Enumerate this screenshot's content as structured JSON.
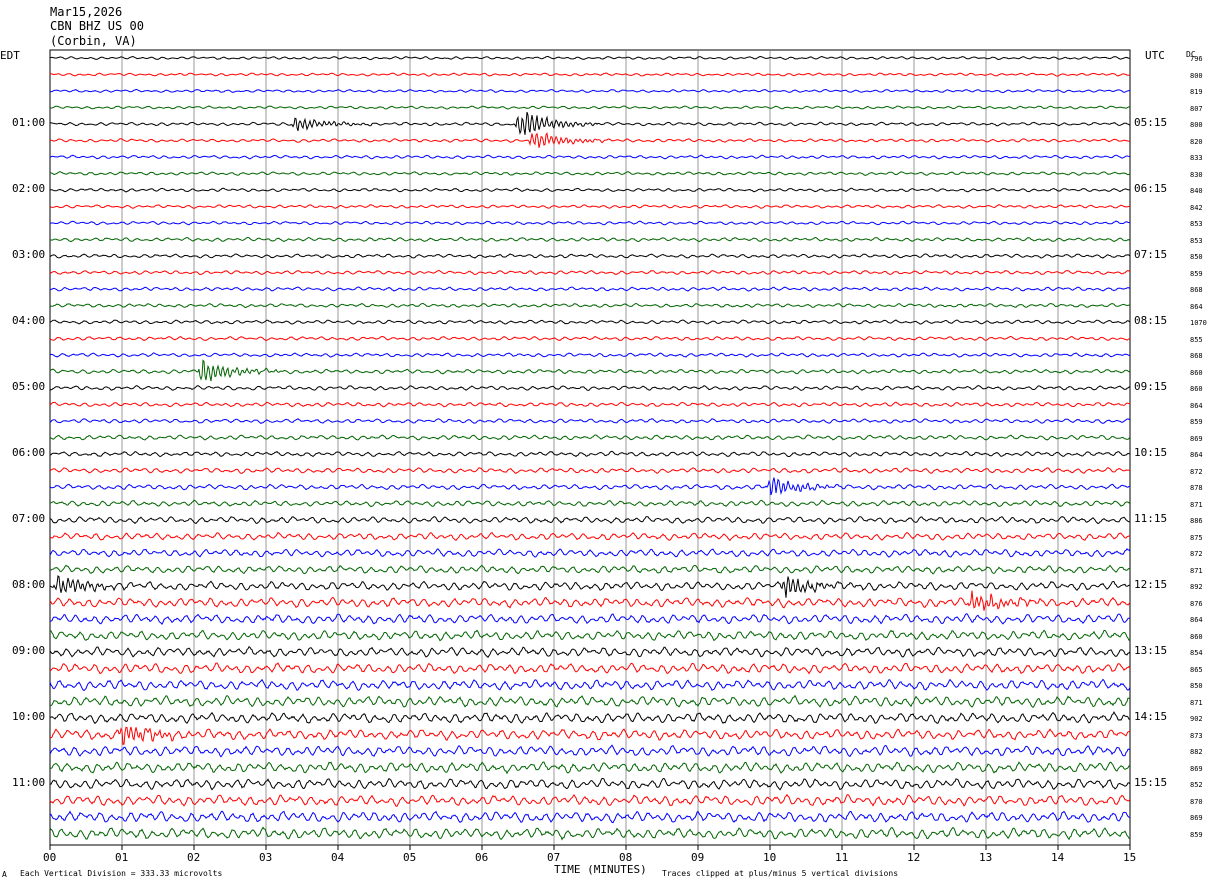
{
  "header": {
    "date": "Mar15,2026",
    "station": "CBN BHZ US 00",
    "location": "(Corbin, VA)"
  },
  "left_axis_label": "EDT",
  "right_axis_label": "UTC",
  "dc_label": "DC",
  "footer": {
    "left_text": "Each Vertical Division =  333.33 microvolts",
    "center_text": "TIME (MINUTES)",
    "right_text": "Traces clipped at plus/minus 5 vertical divisions",
    "corner_mark": "A"
  },
  "colors": {
    "black": "#000000",
    "red": "#ff0000",
    "blue": "#0000ff",
    "green": "#006400",
    "grid": "#808080"
  },
  "chart_data": {
    "type": "line",
    "title": "Mar15,2026 CBN BHZ US 00 (Corbin, VA)",
    "xlabel": "TIME (MINUTES)",
    "x_ticks": [
      "00",
      "01",
      "02",
      "03",
      "04",
      "05",
      "06",
      "07",
      "08",
      "09",
      "10",
      "11",
      "12",
      "13",
      "14",
      "15"
    ],
    "xlim": [
      0,
      15
    ],
    "trace_color_cycle": [
      "black",
      "red",
      "blue",
      "green"
    ],
    "trace_count": 48,
    "trace_minutes": 15,
    "left_hour_labels": [
      "01:00",
      "02:00",
      "03:00",
      "04:00",
      "05:00",
      "06:00",
      "07:00",
      "08:00",
      "09:00",
      "10:00",
      "11:00"
    ],
    "right_hour_labels": [
      "05:15",
      "06:15",
      "07:15",
      "08:15",
      "09:15",
      "10:15",
      "11:15",
      "12:15",
      "13:15",
      "14:15",
      "15:15"
    ],
    "dc_values": [
      "796",
      "800",
      "819",
      "807",
      "800",
      "820",
      "833",
      "830",
      "840",
      "842",
      "853",
      "853",
      "850",
      "859",
      "868",
      "864",
      "1070",
      "855",
      "868",
      "860",
      "860",
      "864",
      "859",
      "869",
      "864",
      "872",
      "878",
      "871",
      "886",
      "875",
      "872",
      "871",
      "892",
      "876",
      "864",
      "860",
      "854",
      "865",
      "850",
      "871",
      "902",
      "873",
      "882",
      "869",
      "852",
      "870",
      "869",
      "859"
    ],
    "amplitude_per_trace": [
      0.3,
      0.3,
      0.3,
      0.3,
      0.35,
      0.35,
      0.35,
      0.35,
      0.35,
      0.35,
      0.35,
      0.4,
      0.4,
      0.4,
      0.4,
      0.4,
      0.4,
      0.4,
      0.4,
      0.45,
      0.45,
      0.45,
      0.45,
      0.5,
      0.5,
      0.55,
      0.55,
      0.6,
      0.7,
      0.75,
      0.8,
      0.8,
      0.9,
      1.0,
      1.0,
      1.0,
      1.0,
      1.05,
      1.05,
      1.1,
      1.1,
      1.1,
      1.1,
      1.1,
      1.1,
      1.1,
      1.15,
      1.15
    ],
    "events": [
      {
        "trace": 4,
        "minute": 6.5,
        "amplitude": 3.0
      },
      {
        "trace": 4,
        "minute": 3.4,
        "amplitude": 1.6
      },
      {
        "trace": 5,
        "minute": 6.7,
        "amplitude": 2.0
      },
      {
        "trace": 19,
        "minute": 2.1,
        "amplitude": 2.5
      },
      {
        "trace": 26,
        "minute": 10.0,
        "amplitude": 2.0
      },
      {
        "trace": 32,
        "minute": 10.2,
        "amplitude": 2.2
      },
      {
        "trace": 33,
        "minute": 12.8,
        "amplitude": 2.5
      },
      {
        "trace": 32,
        "minute": 0.1,
        "amplitude": 2.0
      },
      {
        "trace": 41,
        "minute": 1.0,
        "amplitude": 2.2
      }
    ]
  }
}
